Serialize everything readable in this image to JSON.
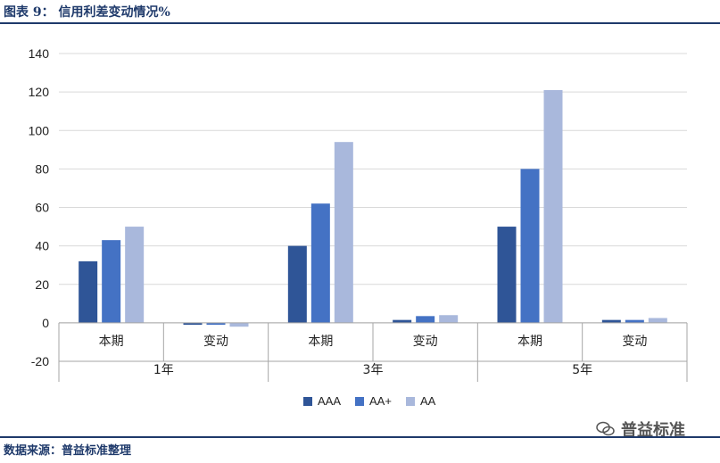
{
  "header": {
    "title": "图表 9：   信用利差变动情况%"
  },
  "footer": {
    "source": "数据来源：普益标准整理",
    "watermark": "普益标准"
  },
  "chart_data": {
    "type": "bar",
    "title": "",
    "xlabel": "",
    "ylabel": "",
    "ylim": [
      -20,
      140
    ],
    "yticks": [
      140,
      120,
      100,
      80,
      60,
      40,
      20,
      0,
      -20
    ],
    "groups": [
      {
        "label": "1年",
        "categories": [
          "本期",
          "变动"
        ]
      },
      {
        "label": "3年",
        "categories": [
          "本期",
          "变动"
        ]
      },
      {
        "label": "5年",
        "categories": [
          "本期",
          "变动"
        ]
      }
    ],
    "categories": [
      "本期",
      "变动",
      "本期",
      "变动",
      "本期",
      "变动"
    ],
    "series": [
      {
        "name": "AAA",
        "color": "#2f5597",
        "values": [
          32,
          -1,
          40,
          1.5,
          50,
          1.5
        ]
      },
      {
        "name": "AA+",
        "color": "#4472c4",
        "values": [
          43,
          -1,
          62,
          3.5,
          80,
          1.5
        ]
      },
      {
        "name": "AA",
        "color": "#a9b8dc",
        "values": [
          50,
          -2,
          94,
          4,
          121,
          2.5
        ]
      }
    ],
    "grid": true,
    "legend_position": "bottom"
  }
}
